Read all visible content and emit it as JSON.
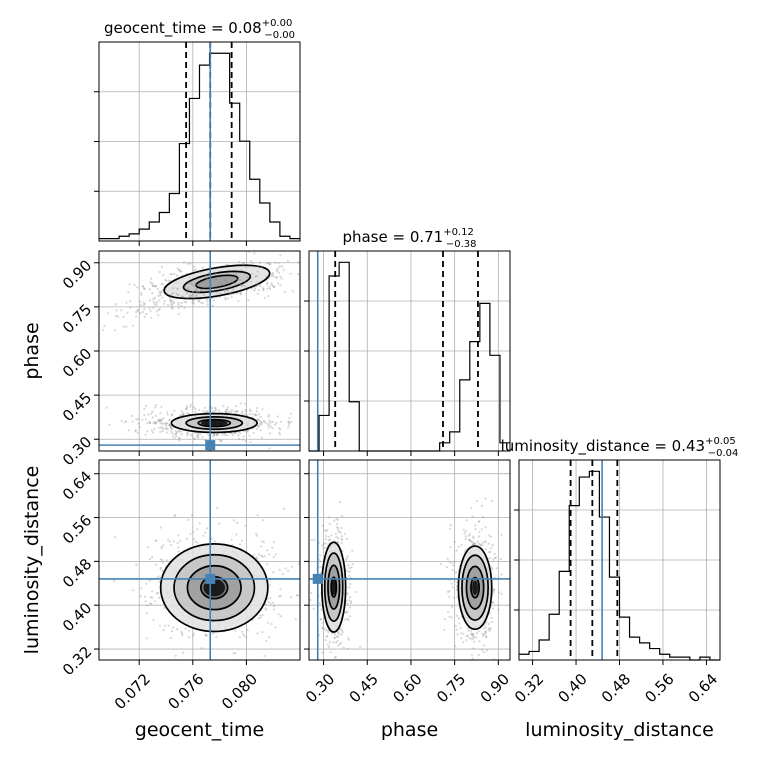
{
  "chart_data": {
    "type": "corner",
    "parameters": [
      "geocent_time",
      "phase",
      "luminosity_distance"
    ],
    "truths": {
      "geocent_time": 0.0773,
      "phase": 0.28,
      "luminosity_distance": 0.448
    },
    "colors": {
      "truth": "#4682b4",
      "hist": "#000000",
      "grid": "#b0b0b0",
      "scatter": "#8c8c8c"
    },
    "marginals": [
      {
        "param": "geocent_time",
        "title": {
          "text": "geocent_time = 0.08",
          "sup": "+0.00",
          "sub": "−0.00"
        },
        "xlim": [
          0.069,
          0.084
        ],
        "quantiles": [
          0.0755,
          0.0773,
          0.0789
        ],
        "ticks": [
          0.072,
          0.076,
          0.08
        ],
        "bins": {
          "x0": 0.069,
          "width": 0.00075,
          "counts": [
            1,
            1,
            2,
            3,
            5,
            8,
            12,
            20,
            41,
            60,
            74,
            79,
            79,
            58,
            42,
            26,
            16,
            8,
            2,
            1
          ]
        }
      },
      {
        "param": "phase",
        "title": {
          "text": "phase = 0.71",
          "sup": "+0.12",
          "sub": "−0.38"
        },
        "xlim": [
          0.25,
          0.94
        ],
        "quantiles": [
          0.34,
          0.71,
          0.83
        ],
        "ticks": [
          0.3,
          0.45,
          0.6,
          0.75,
          0.9
        ],
        "bins": {
          "x0": 0.25,
          "width": 0.0345,
          "counts": [
            0,
            13,
            64,
            69,
            18,
            0,
            0,
            0,
            0,
            0,
            0,
            0,
            0,
            3,
            7,
            26,
            40,
            54,
            35,
            3
          ]
        }
      },
      {
        "param": "luminosity_distance",
        "title": {
          "text": "luminosity_distance = 0.43",
          "sup": "+0.05",
          "sub": "−0.04"
        },
        "xlim": [
          0.295,
          0.665
        ],
        "quantiles": [
          0.39,
          0.43,
          0.476
        ],
        "ticks": [
          0.32,
          0.4,
          0.48,
          0.56,
          0.64
        ],
        "bins": {
          "x0": 0.295,
          "width": 0.0185,
          "counts": [
            2,
            3,
            7,
            16,
            31,
            54,
            64,
            66,
            50,
            29,
            15,
            8,
            6,
            4,
            2,
            1,
            1,
            0,
            1,
            0
          ]
        }
      }
    ],
    "joints": [
      {
        "x": "geocent_time",
        "y": "phase",
        "clusters": [
          {
            "cx": 0.0778,
            "cy": 0.835,
            "sx": 0.0021,
            "sy": 0.025,
            "tilt": 0.25,
            "weight": 0.7,
            "levels": [
              0.75,
              1.2,
              1.9
            ],
            "core_r": 0.0
          },
          {
            "cx": 0.0765,
            "cy": 0.8,
            "sx": 0.0024,
            "sy": 0.02,
            "tilt": 0.6,
            "weight": 0.3,
            "levels": [],
            "core_r": 0.0
          },
          {
            "cx": 0.0776,
            "cy": 0.355,
            "sx": 0.002,
            "sy": 0.02,
            "tilt": 0.0,
            "weight": 1.0,
            "levels": [
              0.6,
              1.05,
              1.6
            ],
            "core_r": 0.5
          }
        ]
      },
      {
        "x": "geocent_time",
        "y": "luminosity_distance",
        "clusters": [
          {
            "cx": 0.0776,
            "cy": 0.432,
            "sx": 0.002,
            "sy": 0.04,
            "tilt": 0.0,
            "weight": 1.0,
            "levels": [
              0.5,
              1.0,
              1.5,
              2.0
            ],
            "core_r": 0.4
          }
        ]
      },
      {
        "x": "phase",
        "y": "luminosity_distance",
        "clusters": [
          {
            "cx": 0.335,
            "cy": 0.433,
            "sx": 0.02,
            "sy": 0.04,
            "tilt": 0.0,
            "weight": 1.0,
            "levels": [
              0.45,
              1.0,
              1.55,
              2.05
            ],
            "core_r": 0.35
          },
          {
            "cx": 0.82,
            "cy": 0.432,
            "sx": 0.028,
            "sy": 0.037,
            "tilt": 0.0,
            "weight": 1.0,
            "levels": [
              0.5,
              1.05,
              1.6,
              2.05
            ],
            "core_r": 0.35
          }
        ]
      }
    ],
    "phase_ylim": [
      0.26,
      0.94
    ],
    "ld_ylim": [
      0.3,
      0.665
    ],
    "xlabels": [
      "geocent_time",
      "phase",
      "luminosity_distance"
    ],
    "ylabels": {
      "phase": "phase",
      "luminosity_distance": "luminosity_distance"
    }
  }
}
